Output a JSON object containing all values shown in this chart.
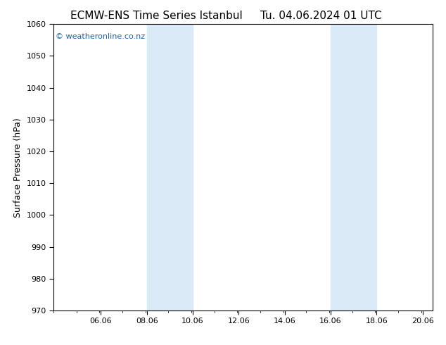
{
  "title_left": "ECMW-ENS Time Series Istanbul",
  "title_right": "Tu. 04.06.2024 01 UTC",
  "ylabel": "Surface Pressure (hPa)",
  "ylim": [
    970,
    1060
  ],
  "yticks": [
    970,
    980,
    990,
    1000,
    1010,
    1020,
    1030,
    1040,
    1050,
    1060
  ],
  "xlim_start": 4.0,
  "xlim_end": 20.5,
  "xticks": [
    6.06,
    8.06,
    10.06,
    12.06,
    14.06,
    16.06,
    18.06,
    20.06
  ],
  "xticklabels": [
    "06.06",
    "08.06",
    "10.06",
    "12.06",
    "14.06",
    "16.06",
    "18.06",
    "20.06"
  ],
  "shaded_bands": [
    {
      "x_start": 8.06,
      "x_end": 10.06
    },
    {
      "x_start": 16.06,
      "x_end": 18.06
    }
  ],
  "shade_color": "#daeaf7",
  "background_color": "#ffffff",
  "plot_bg_color": "#ffffff",
  "watermark_text": "© weatheronline.co.nz",
  "watermark_color": "#1a5fa8",
  "title_fontsize": 11,
  "axis_label_fontsize": 9,
  "tick_fontsize": 8,
  "watermark_fontsize": 8
}
